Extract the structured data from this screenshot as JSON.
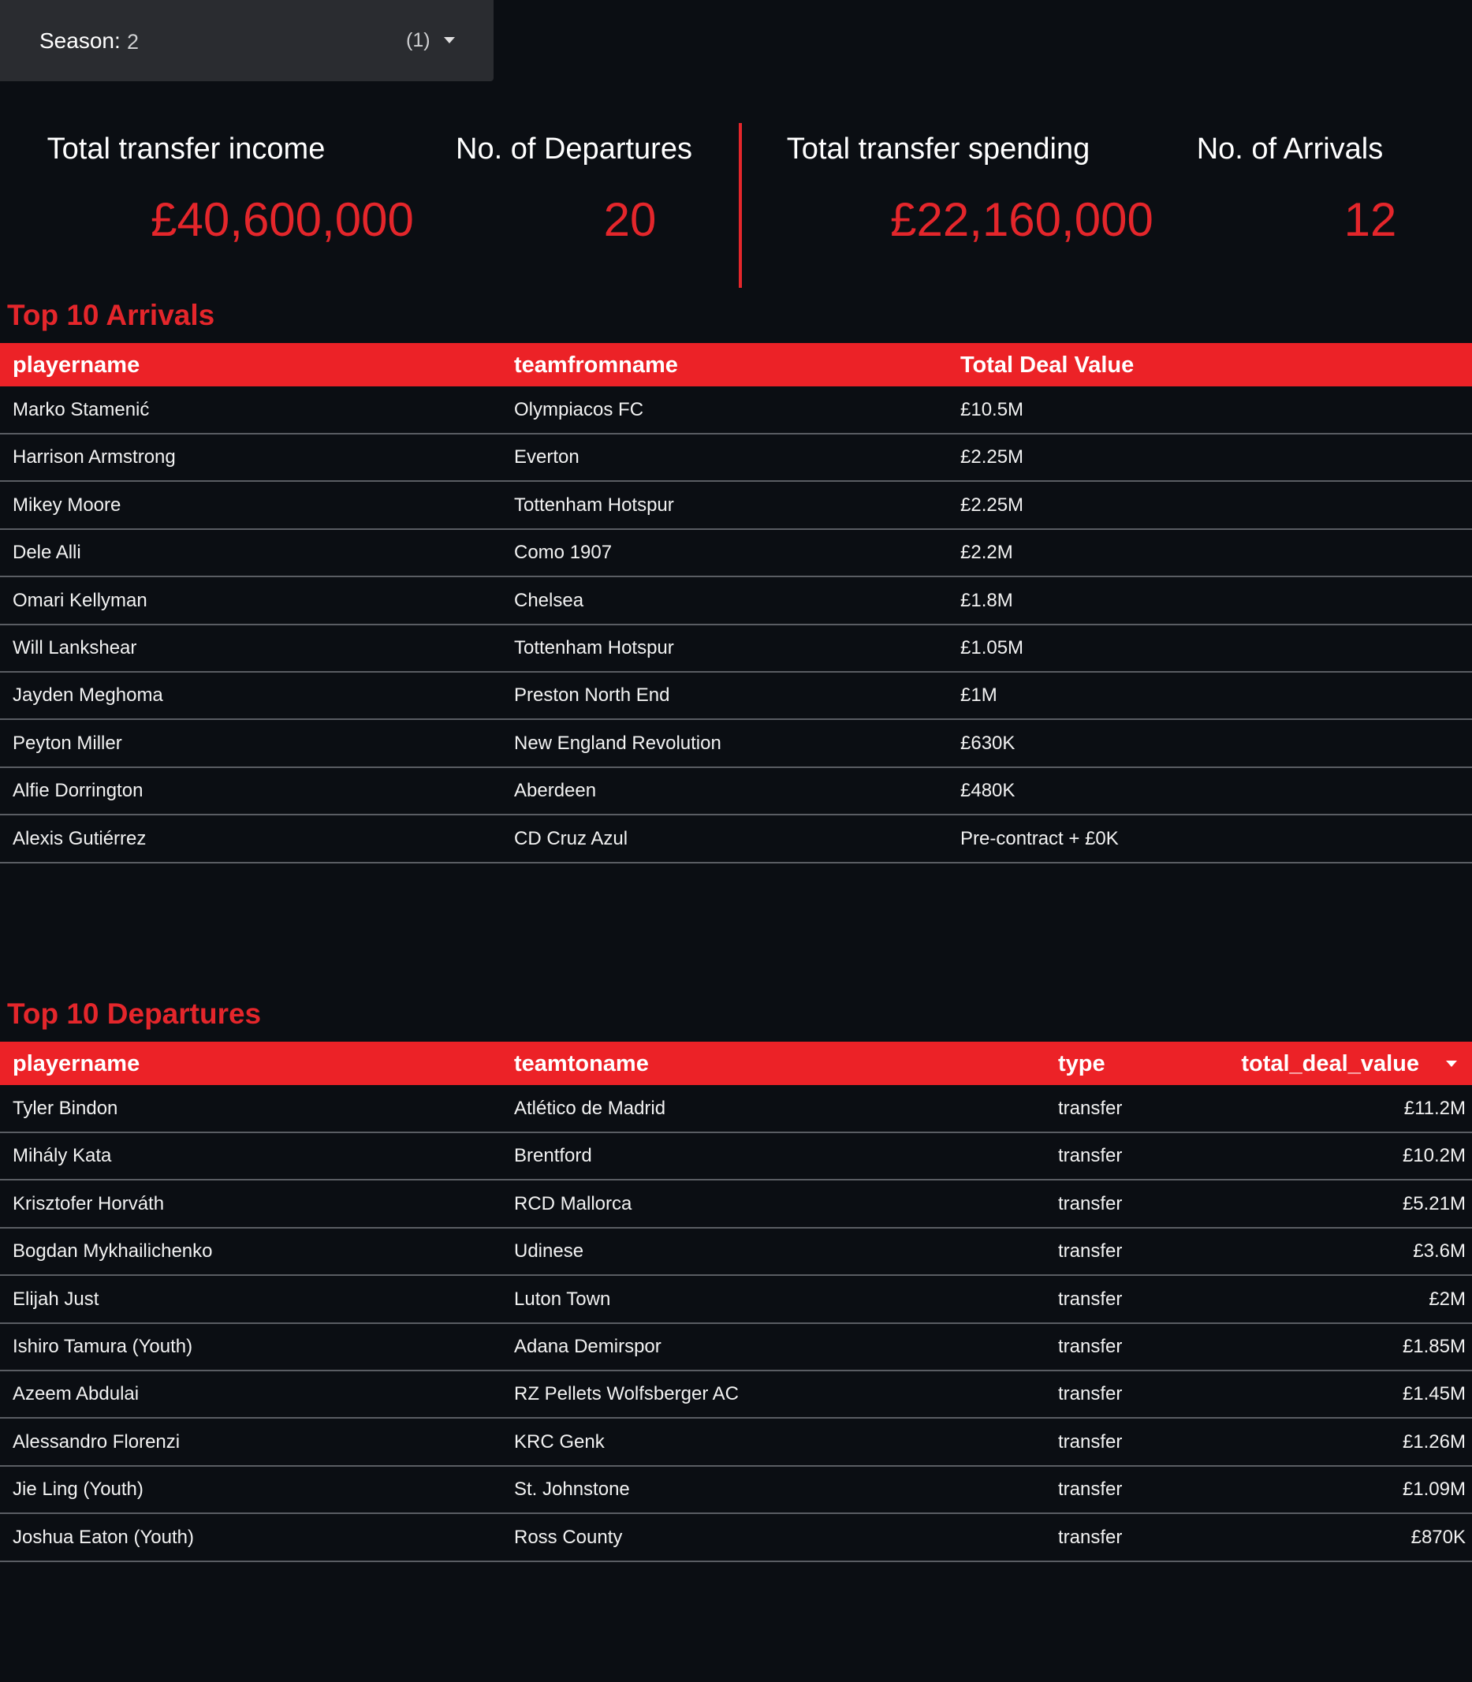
{
  "filter": {
    "label": "Season:",
    "value": "2",
    "count": "(1)"
  },
  "kpis": [
    {
      "label": "Total transfer income",
      "value": "£40,600,000"
    },
    {
      "label": "No. of Departures",
      "value": "20"
    },
    {
      "label": "Total transfer spending",
      "value": "£22,160,000"
    },
    {
      "label": "No. of Arrivals",
      "value": "12"
    }
  ],
  "arrivals": {
    "title": "Top 10 Arrivals",
    "columns": [
      "playername",
      "teamfromname",
      "Total Deal Value"
    ],
    "rows": [
      [
        "Marko Stamenić",
        "Olympiacos FC",
        "£10.5M"
      ],
      [
        "Harrison Armstrong",
        "Everton",
        "£2.25M"
      ],
      [
        "Mikey Moore",
        "Tottenham Hotspur",
        "£2.25M"
      ],
      [
        "Dele Alli",
        "Como 1907",
        "£2.2M"
      ],
      [
        "Omari Kellyman",
        "Chelsea",
        "£1.8M"
      ],
      [
        "Will Lankshear",
        "Tottenham Hotspur",
        "£1.05M"
      ],
      [
        "Jayden Meghoma",
        "Preston North End",
        "£1M"
      ],
      [
        "Peyton Miller",
        "New England Revolution",
        "£630K"
      ],
      [
        "Alfie Dorrington",
        "Aberdeen",
        "£480K"
      ],
      [
        "Alexis Gutiérrez",
        "CD Cruz Azul",
        "Pre-contract + £0K"
      ]
    ]
  },
  "departures": {
    "title": "Top 10 Departures",
    "columns": [
      "playername",
      "teamtoname",
      "type",
      "total_deal_value"
    ],
    "rows": [
      [
        "Tyler Bindon",
        "Atlético de Madrid",
        "transfer",
        "£11.2M"
      ],
      [
        "Mihály Kata",
        "Brentford",
        "transfer",
        "£10.2M"
      ],
      [
        "Krisztofer Horváth",
        "RCD Mallorca",
        "transfer",
        "£5.21M"
      ],
      [
        "Bogdan Mykhailichenko",
        "Udinese",
        "transfer",
        "£3.6M"
      ],
      [
        "Elijah Just",
        "Luton Town",
        "transfer",
        "£2M"
      ],
      [
        "Ishiro Tamura (Youth)",
        "Adana Demirspor",
        "transfer",
        "£1.85M"
      ],
      [
        "Azeem Abdulai",
        "RZ Pellets Wolfsberger AC",
        "transfer",
        "£1.45M"
      ],
      [
        "Alessandro Florenzi",
        "KRC Genk",
        "transfer",
        "£1.26M"
      ],
      [
        "Jie Ling (Youth)",
        "St. Johnstone",
        "transfer",
        "£1.09M"
      ],
      [
        "Joshua Eaton (Youth)",
        "Ross County",
        "transfer",
        "£870K"
      ]
    ]
  }
}
